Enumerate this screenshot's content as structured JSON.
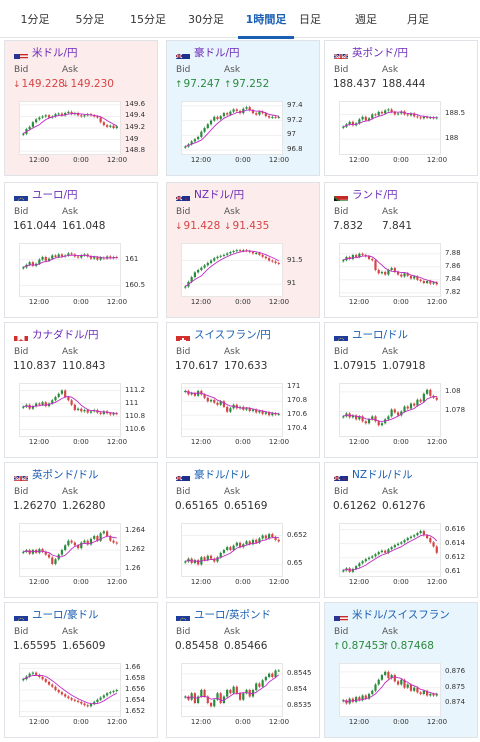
{
  "tabs": [
    {
      "label": "1分足",
      "active": false
    },
    {
      "label": "5分足",
      "active": false
    },
    {
      "label": "15分足",
      "active": false
    },
    {
      "label": "30分足",
      "active": false
    },
    {
      "label": "1時間足",
      "active": true
    },
    {
      "label": "日足",
      "active": false
    },
    {
      "label": "週足",
      "active": false
    },
    {
      "label": "月足",
      "active": false
    }
  ],
  "colors": {
    "accent": "#1a5fb4",
    "up": "#2b8a3e",
    "down": "#d64545",
    "link": "#1a5fb4",
    "purple": "#6b2bb8",
    "ma": "#c02ac6"
  },
  "cards": [
    {
      "pair": "米ドル/円",
      "pair_color": "purple",
      "flag": "us",
      "bg": "pink",
      "bid_label": "Bid",
      "ask_label": "Ask",
      "bid": "149.228",
      "ask": "149.230",
      "dir": "down",
      "arrow": "↓",
      "chart_data": {
        "type": "candlestick",
        "title": "",
        "yticks": [
          "149.6",
          "149.4",
          "149.2",
          "149",
          "148.8"
        ],
        "xticks": [
          "12:00",
          "0:00",
          "12:00"
        ],
        "ylim": [
          148.75,
          149.65
        ],
        "closes": [
          149.1,
          149.18,
          149.22,
          149.3,
          149.35,
          149.38,
          149.4,
          149.42,
          149.38,
          149.4,
          149.44,
          149.45,
          149.42,
          149.46,
          149.48,
          149.44,
          149.46,
          149.42,
          149.4,
          149.42,
          149.44,
          149.42,
          149.4,
          149.38,
          149.3,
          149.25,
          149.22,
          149.24,
          149.2,
          149.23
        ]
      }
    },
    {
      "pair": "豪ドル/円",
      "pair_color": "purple",
      "flag": "au",
      "bg": "blue",
      "bid_label": "Bid",
      "ask_label": "Ask",
      "bid": "97.247",
      "ask": "97.252",
      "dir": "up",
      "arrow": "↑",
      "chart_data": {
        "type": "candlestick",
        "title": "",
        "yticks": [
          "97.4",
          "97.2",
          "97",
          "96.8"
        ],
        "xticks": [
          "12:00",
          "0:00",
          "12:00"
        ],
        "ylim": [
          96.75,
          97.45
        ],
        "closes": [
          96.85,
          96.88,
          96.92,
          96.95,
          96.98,
          97.05,
          97.1,
          97.15,
          97.2,
          97.25,
          97.22,
          97.26,
          97.3,
          97.28,
          97.32,
          97.35,
          97.33,
          97.3,
          97.36,
          97.38,
          97.34,
          97.3,
          97.28,
          97.32,
          97.3,
          97.26,
          97.24,
          97.25,
          97.24,
          97.25
        ]
      }
    },
    {
      "pair": "英ポンド/円",
      "pair_color": "purple",
      "flag": "gb",
      "bg": "white",
      "bid_label": "Bid",
      "ask_label": "Ask",
      "bid": "188.437",
      "ask": "188.444",
      "dir": "none",
      "arrow": "",
      "chart_data": {
        "type": "candlestick",
        "title": "",
        "yticks": [
          "188.5",
          "188"
        ],
        "xticks": [
          "12:00",
          "0:00",
          "12:00"
        ],
        "ylim": [
          187.7,
          188.75
        ],
        "closes": [
          188.25,
          188.3,
          188.35,
          188.28,
          188.32,
          188.4,
          188.45,
          188.38,
          188.42,
          188.5,
          188.48,
          188.55,
          188.52,
          188.58,
          188.6,
          188.55,
          188.5,
          188.52,
          188.56,
          188.5,
          188.48,
          188.52,
          188.46,
          188.44,
          188.42,
          188.45,
          188.43,
          188.44,
          188.42,
          188.44
        ]
      }
    },
    {
      "pair": "ユーロ/円",
      "pair_color": "purple",
      "flag": "eu",
      "bg": "white",
      "bid_label": "Bid",
      "ask_label": "Ask",
      "bid": "161.044",
      "ask": "161.048",
      "dir": "none",
      "arrow": "",
      "chart_data": {
        "type": "candlestick",
        "title": "",
        "yticks": [
          "161",
          "160.5"
        ],
        "xticks": [
          "12:00",
          "0:00",
          "12:00"
        ],
        "ylim": [
          160.3,
          161.3
        ],
        "closes": [
          160.85,
          160.9,
          160.95,
          160.88,
          160.92,
          161.0,
          161.05,
          160.98,
          161.02,
          161.08,
          161.05,
          161.1,
          161.06,
          161.08,
          161.12,
          161.1,
          161.06,
          161.04,
          161.08,
          161.1,
          161.06,
          161.02,
          161.05,
          161.0,
          161.04,
          161.02,
          161.06,
          161.03,
          161.05,
          161.04
        ]
      }
    },
    {
      "pair": "NZドル/円",
      "pair_color": "purple",
      "flag": "nz",
      "bg": "pink",
      "bid_label": "Bid",
      "ask_label": "Ask",
      "bid": "91.428",
      "ask": "91.435",
      "dir": "down",
      "arrow": "↓",
      "chart_data": {
        "type": "candlestick",
        "title": "",
        "yticks": [
          "91.5",
          "91"
        ],
        "xticks": [
          "12:00",
          "0:00",
          "12:00"
        ],
        "ylim": [
          90.75,
          91.85
        ],
        "closes": [
          90.95,
          91.05,
          91.15,
          91.25,
          91.3,
          91.35,
          91.4,
          91.45,
          91.5,
          91.55,
          91.58,
          91.6,
          91.62,
          91.65,
          91.68,
          91.7,
          91.72,
          91.7,
          91.72,
          91.7,
          91.68,
          91.65,
          91.66,
          91.62,
          91.58,
          91.55,
          91.5,
          91.48,
          91.45,
          91.43
        ]
      }
    },
    {
      "pair": "ランド/円",
      "pair_color": "purple",
      "flag": "za",
      "bg": "white",
      "bid_label": "Bid",
      "ask_label": "Ask",
      "bid": "7.832",
      "ask": "7.841",
      "dir": "none",
      "arrow": "",
      "chart_data": {
        "type": "candlestick",
        "title": "",
        "yticks": [
          "7.88",
          "7.86",
          "7.84",
          "7.82"
        ],
        "xticks": [
          "12:00",
          "0:00",
          "12:00"
        ],
        "ylim": [
          7.815,
          7.895
        ],
        "closes": [
          7.87,
          7.875,
          7.872,
          7.878,
          7.875,
          7.88,
          7.878,
          7.876,
          7.872,
          7.87,
          7.855,
          7.85,
          7.852,
          7.848,
          7.855,
          7.858,
          7.852,
          7.848,
          7.845,
          7.85,
          7.846,
          7.842,
          7.845,
          7.84,
          7.838,
          7.835,
          7.838,
          7.834,
          7.836,
          7.833
        ]
      }
    },
    {
      "pair": "カナダドル/円",
      "pair_color": "purple",
      "flag": "ca",
      "bg": "white",
      "bid_label": "Bid",
      "ask_label": "Ask",
      "bid": "110.837",
      "ask": "110.843",
      "dir": "none",
      "arrow": "",
      "chart_data": {
        "type": "candlestick",
        "title": "",
        "yticks": [
          "111.2",
          "111",
          "110.8",
          "110.6"
        ],
        "xticks": [
          "12:00",
          "0:00",
          "12:00"
        ],
        "ylim": [
          110.5,
          111.3
        ],
        "closes": [
          110.95,
          110.98,
          110.92,
          110.96,
          111.0,
          110.98,
          111.02,
          110.96,
          111.0,
          111.05,
          111.1,
          111.15,
          111.2,
          111.1,
          111.05,
          110.98,
          110.9,
          110.92,
          110.88,
          110.9,
          110.86,
          110.88,
          110.9,
          110.86,
          110.84,
          110.88,
          110.85,
          110.83,
          110.85,
          110.84
        ]
      }
    },
    {
      "pair": "スイスフラン/円",
      "pair_color": "link",
      "flag": "ch",
      "bg": "white",
      "bid_label": "Bid",
      "ask_label": "Ask",
      "bid": "170.617",
      "ask": "170.633",
      "dir": "none",
      "arrow": "",
      "chart_data": {
        "type": "candlestick",
        "title": "",
        "yticks": [
          "171",
          "170.8",
          "170.6",
          "170.4"
        ],
        "xticks": [
          "12:00",
          "0:00",
          "12:00"
        ],
        "ylim": [
          170.3,
          171.05
        ],
        "closes": [
          170.95,
          170.9,
          170.92,
          170.88,
          170.95,
          170.9,
          170.85,
          170.8,
          170.82,
          170.78,
          170.75,
          170.8,
          170.72,
          170.65,
          170.7,
          170.75,
          170.7,
          170.72,
          170.68,
          170.7,
          170.66,
          170.68,
          170.64,
          170.66,
          170.62,
          170.64,
          170.6,
          170.63,
          170.61,
          170.62
        ]
      }
    },
    {
      "pair": "ユーロ/ドル",
      "pair_color": "link",
      "flag": "eu",
      "bg": "white",
      "bid_label": "Bid",
      "ask_label": "Ask",
      "bid": "1.07915",
      "ask": "1.07918",
      "dir": "none",
      "arrow": "",
      "chart_data": {
        "type": "candlestick",
        "title": "",
        "yticks": [
          "1.08",
          "1.078"
        ],
        "xticks": [
          "12:00",
          "0:00",
          "12:00"
        ],
        "ylim": [
          1.0755,
          1.0808
        ],
        "closes": [
          1.0775,
          1.0778,
          1.0774,
          1.0776,
          1.0772,
          1.0775,
          1.077,
          1.0768,
          1.0772,
          1.0775,
          1.077,
          1.0766,
          1.0768,
          1.0772,
          1.0775,
          1.0782,
          1.0779,
          1.0776,
          1.078,
          1.0785,
          1.0783,
          1.0788,
          1.0786,
          1.0792,
          1.079,
          1.0798,
          1.0802,
          1.0796,
          1.0794,
          1.0792
        ]
      }
    },
    {
      "pair": "英ポンド/ドル",
      "pair_color": "link",
      "flag": "gb",
      "bg": "white",
      "bid_label": "Bid",
      "ask_label": "Ask",
      "bid": "1.26270",
      "ask": "1.26280",
      "dir": "none",
      "arrow": "",
      "chart_data": {
        "type": "candlestick",
        "title": "",
        "yticks": [
          "1.264",
          "1.262",
          "1.26"
        ],
        "xticks": [
          "12:00",
          "0:00",
          "12:00"
        ],
        "ylim": [
          1.2592,
          1.2648
        ],
        "closes": [
          1.2618,
          1.262,
          1.2616,
          1.262,
          1.2617,
          1.2621,
          1.2618,
          1.2615,
          1.2612,
          1.2605,
          1.261,
          1.2615,
          1.262,
          1.2625,
          1.263,
          1.2628,
          1.2625,
          1.2622,
          1.2628,
          1.263,
          1.2626,
          1.2632,
          1.2635,
          1.263,
          1.2638,
          1.264,
          1.2635,
          1.263,
          1.2628,
          1.2627
        ]
      }
    },
    {
      "pair": "豪ドル/ドル",
      "pair_color": "link",
      "flag": "au",
      "bg": "white",
      "bid_label": "Bid",
      "ask_label": "Ask",
      "bid": "0.65165",
      "ask": "0.65169",
      "dir": "none",
      "arrow": "",
      "chart_data": {
        "type": "candlestick",
        "title": "",
        "yticks": [
          "0.652",
          "0.65"
        ],
        "xticks": [
          "12:00",
          "0:00",
          "12:00"
        ],
        "ylim": [
          0.6492,
          0.6528
        ],
        "closes": [
          0.6502,
          0.6504,
          0.6501,
          0.6503,
          0.65,
          0.6505,
          0.6503,
          0.6506,
          0.6504,
          0.6502,
          0.6505,
          0.6508,
          0.651,
          0.6512,
          0.651,
          0.6513,
          0.6515,
          0.6512,
          0.6514,
          0.6516,
          0.6514,
          0.6517,
          0.6515,
          0.6518,
          0.652,
          0.6518,
          0.6521,
          0.6519,
          0.6517,
          0.6516
        ]
      }
    },
    {
      "pair": "NZドル/ドル",
      "pair_color": "link",
      "flag": "nz",
      "bg": "white",
      "bid_label": "Bid",
      "ask_label": "Ask",
      "bid": "0.61262",
      "ask": "0.61276",
      "dir": "none",
      "arrow": "",
      "chart_data": {
        "type": "candlestick",
        "title": "",
        "yticks": [
          "0.616",
          "0.614",
          "0.612",
          "0.61"
        ],
        "xticks": [
          "12:00",
          "0:00",
          "12:00"
        ],
        "ylim": [
          0.6094,
          0.6168
        ],
        "closes": [
          0.6102,
          0.6105,
          0.61,
          0.6104,
          0.6108,
          0.6112,
          0.6115,
          0.6118,
          0.612,
          0.6122,
          0.6125,
          0.6128,
          0.613,
          0.6127,
          0.6132,
          0.6135,
          0.6138,
          0.614,
          0.6142,
          0.6145,
          0.6148,
          0.615,
          0.6152,
          0.6155,
          0.6158,
          0.6152,
          0.6148,
          0.6142,
          0.6136,
          0.6127
        ]
      }
    },
    {
      "pair": "ユーロ/豪ドル",
      "pair_color": "link",
      "flag": "eu",
      "bg": "white",
      "bid_label": "Bid",
      "ask_label": "Ask",
      "bid": "1.65595",
      "ask": "1.65609",
      "dir": "none",
      "arrow": "",
      "chart_data": {
        "type": "candlestick",
        "title": "",
        "yticks": [
          "1.66",
          "1.658",
          "1.656",
          "1.654",
          "1.652"
        ],
        "xticks": [
          "12:00",
          "0:00",
          "12:00"
        ],
        "ylim": [
          1.6512,
          1.6608
        ],
        "closes": [
          1.658,
          1.6585,
          1.659,
          1.6592,
          1.6588,
          1.6584,
          1.658,
          1.6575,
          1.657,
          1.6566,
          1.656,
          1.6556,
          1.6552,
          1.6548,
          1.6545,
          1.6542,
          1.654,
          1.6538,
          1.6535,
          1.6532,
          1.653,
          1.6534,
          1.6538,
          1.6542,
          1.6546,
          1.655,
          1.6554,
          1.6556,
          1.6558,
          1.656
        ]
      }
    },
    {
      "pair": "ユーロ/英ポンド",
      "pair_color": "link",
      "flag": "eu",
      "bg": "white",
      "bid_label": "Bid",
      "ask_label": "Ask",
      "bid": "0.85458",
      "ask": "0.85466",
      "dir": "none",
      "arrow": "",
      "chart_data": {
        "type": "candlestick",
        "title": "",
        "yticks": [
          "0.8545",
          "0.854",
          "0.8535"
        ],
        "xticks": [
          "12:00",
          "0:00",
          "12:00"
        ],
        "ylim": [
          0.8532,
          0.8548
        ],
        "closes": [
          0.8538,
          0.8537,
          0.8539,
          0.8536,
          0.8538,
          0.854,
          0.8538,
          0.8536,
          0.8535,
          0.8537,
          0.8539,
          0.8536,
          0.8538,
          0.854,
          0.8539,
          0.8541,
          0.8539,
          0.8537,
          0.8539,
          0.854,
          0.8538,
          0.854,
          0.8542,
          0.8541,
          0.8543,
          0.8544,
          0.8545,
          0.8544,
          0.8546,
          0.8546
        ]
      }
    },
    {
      "pair": "米ドル/スイスフラン",
      "pair_color": "link",
      "flag": "us",
      "bg": "blue",
      "bid_label": "Bid",
      "ask_label": "Ask",
      "bid": "0.87453",
      "ask": "0.87468",
      "dir": "up",
      "arrow": "↑",
      "chart_data": {
        "type": "candlestick",
        "title": "",
        "yticks": [
          "0.876",
          "0.875",
          "0.874"
        ],
        "xticks": [
          "12:00",
          "0:00",
          "12:00"
        ],
        "ylim": [
          0.8732,
          0.8765
        ],
        "closes": [
          0.8742,
          0.874,
          0.8743,
          0.8741,
          0.8744,
          0.8742,
          0.8745,
          0.8743,
          0.8746,
          0.8748,
          0.8752,
          0.8755,
          0.8758,
          0.876,
          0.8756,
          0.8758,
          0.8754,
          0.8752,
          0.8755,
          0.875,
          0.8752,
          0.8748,
          0.875,
          0.8747,
          0.8746,
          0.8748,
          0.8745,
          0.8746,
          0.8745,
          0.8746
        ]
      }
    }
  ]
}
